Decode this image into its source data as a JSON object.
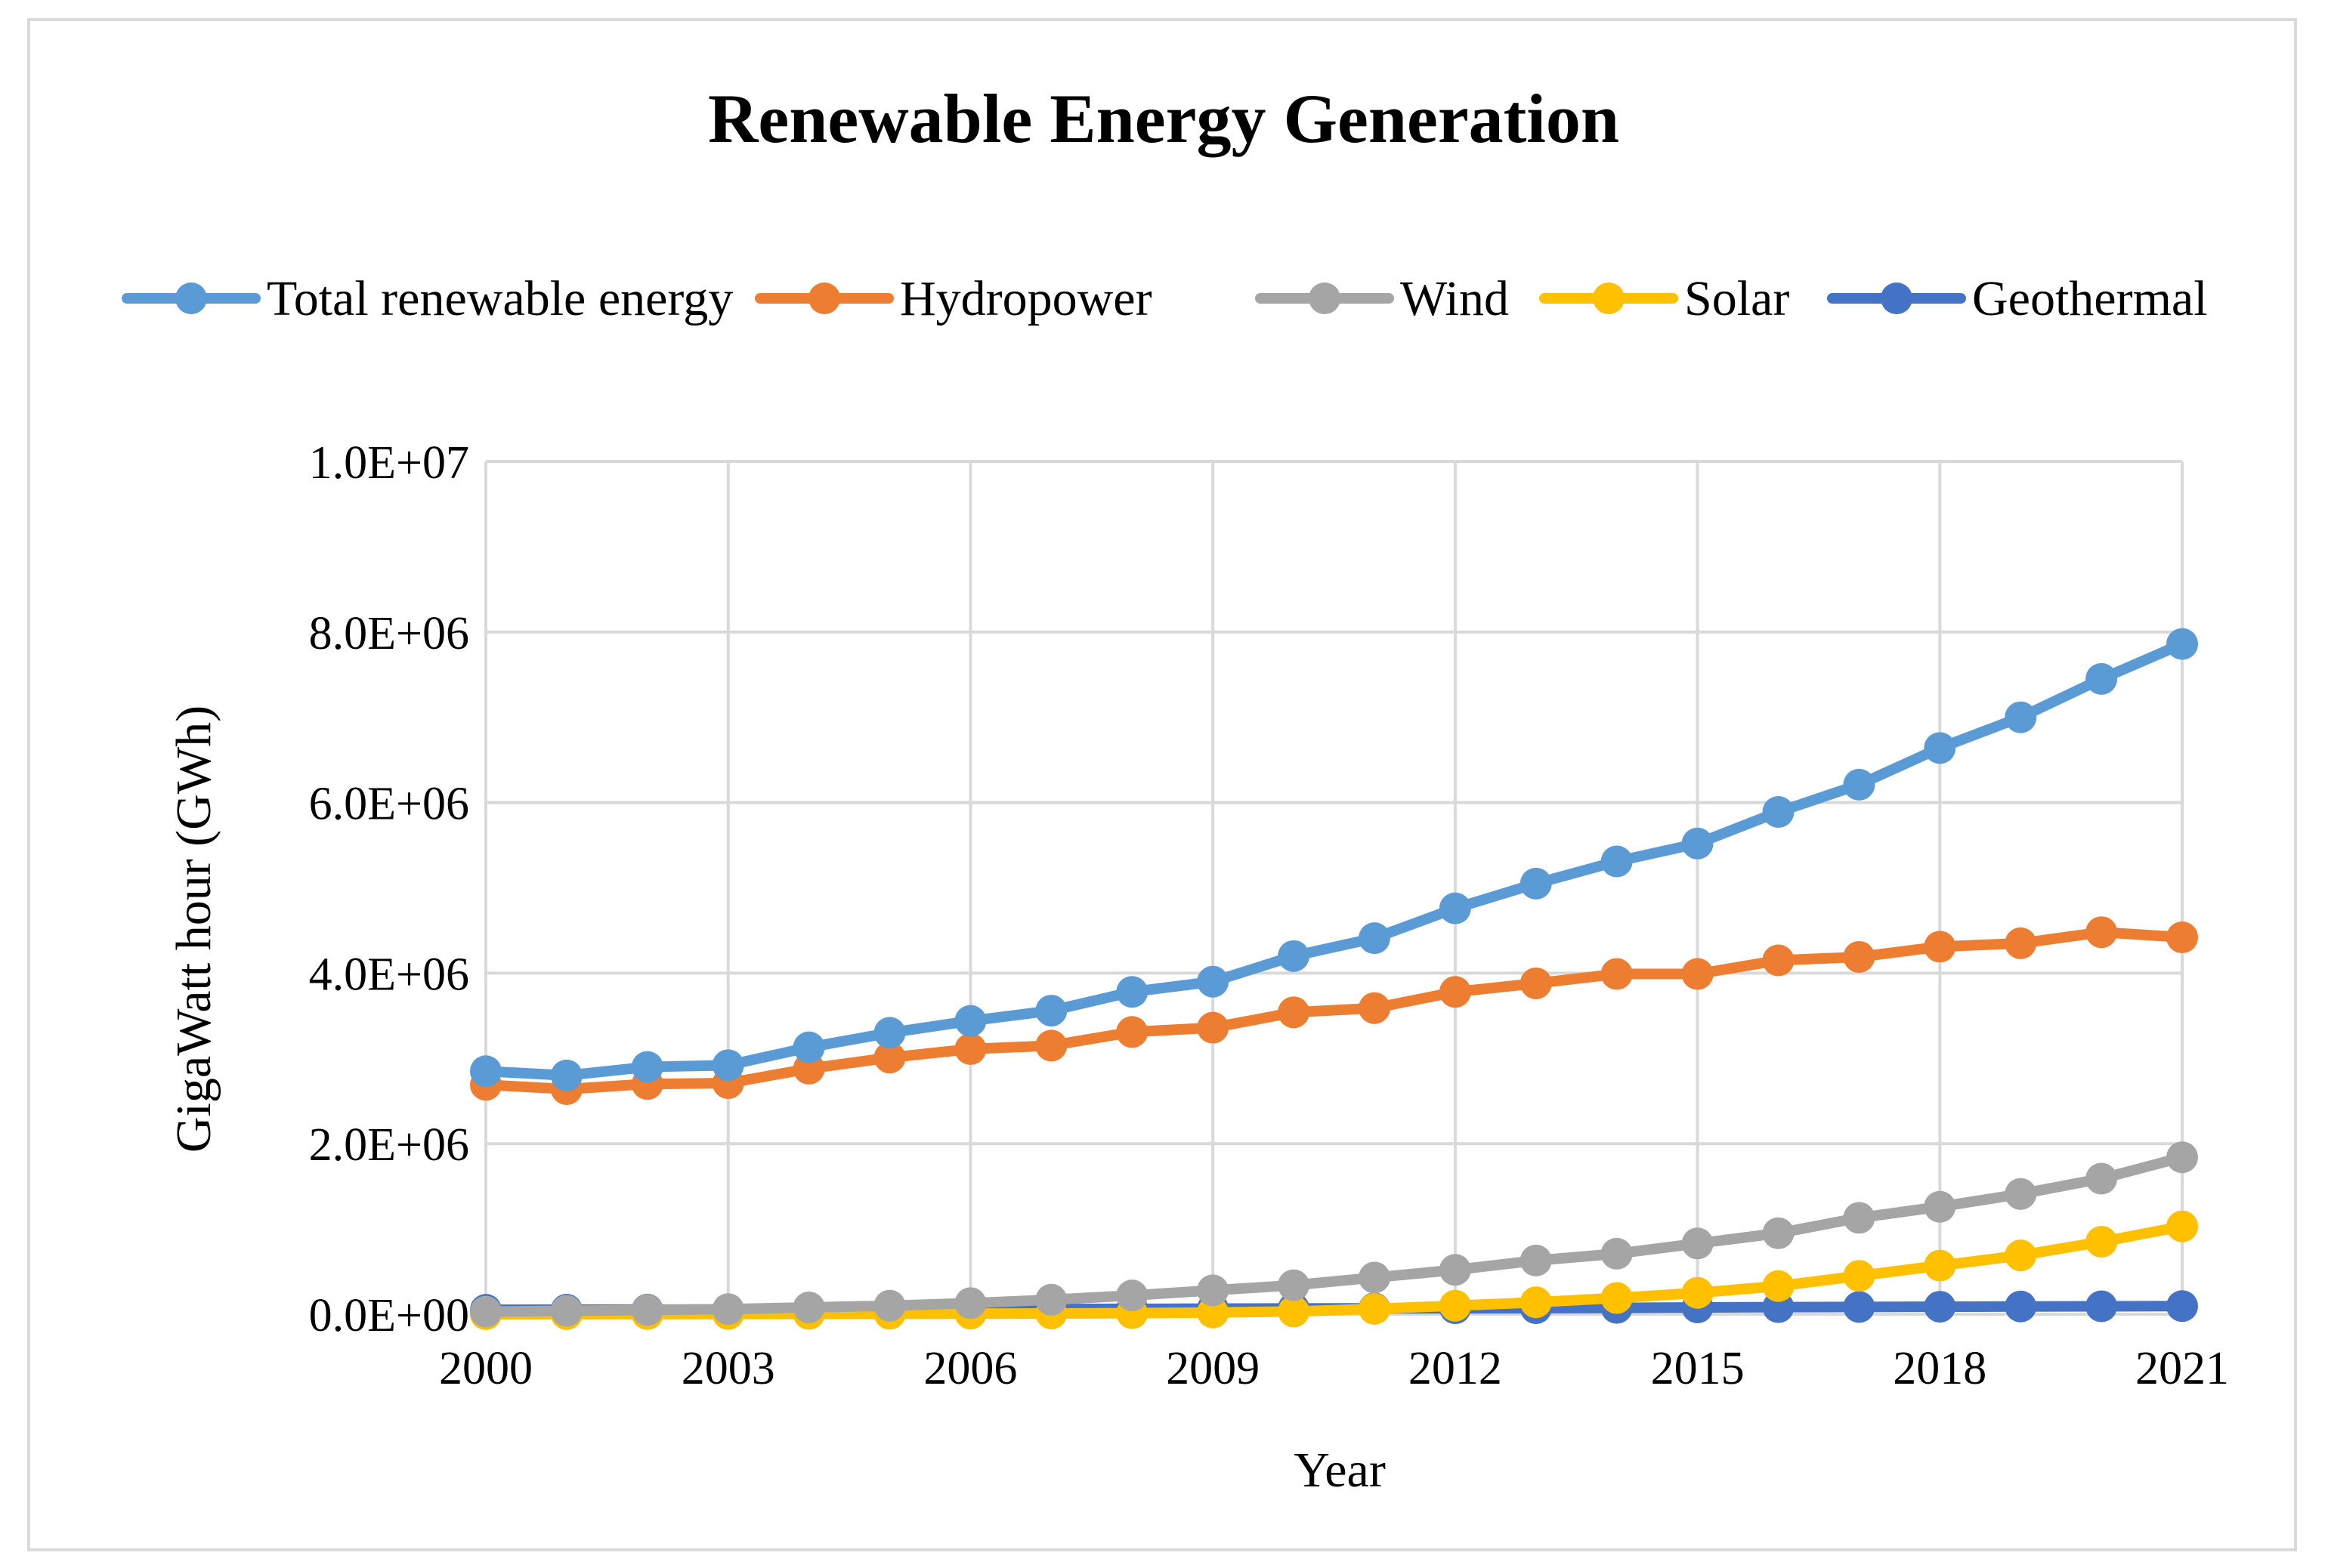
{
  "chart_data": {
    "type": "line",
    "title": "Renewable Energy Generation",
    "xlabel": "Year",
    "ylabel": "GigaWatt hour (GWh)",
    "ylim": [
      0,
      10000000
    ],
    "xlim": [
      2000,
      2021
    ],
    "x_ticks": [
      "2000",
      "2003",
      "2006",
      "2009",
      "2012",
      "2015",
      "2018",
      "2021"
    ],
    "y_ticks": [
      "0.0E+00",
      "2.0E+06",
      "4.0E+06",
      "6.0E+06",
      "8.0E+06",
      "1.0E+07"
    ],
    "grid": true,
    "legend_position": "top",
    "x": [
      2000,
      2001,
      2002,
      2003,
      2004,
      2005,
      2006,
      2007,
      2008,
      2009,
      2010,
      2011,
      2012,
      2013,
      2014,
      2015,
      2016,
      2017,
      2018,
      2019,
      2020,
      2021
    ],
    "series": [
      {
        "name": "Total renewable energy",
        "color": "#5b9bd5",
        "values": [
          2850000,
          2800000,
          2900000,
          2920000,
          3130000,
          3300000,
          3440000,
          3560000,
          3780000,
          3900000,
          4200000,
          4410000,
          4760000,
          5050000,
          5310000,
          5520000,
          5890000,
          6210000,
          6640000,
          7000000,
          7450000,
          7860000
        ]
      },
      {
        "name": "Hydropower",
        "color": "#ed7d31",
        "values": [
          2690000,
          2640000,
          2700000,
          2710000,
          2880000,
          3010000,
          3110000,
          3150000,
          3310000,
          3360000,
          3540000,
          3590000,
          3780000,
          3880000,
          3990000,
          3990000,
          4150000,
          4190000,
          4310000,
          4350000,
          4480000,
          4420000
        ]
      },
      {
        "name": "Wind",
        "color": "#a5a5a5",
        "values": [
          30000,
          40000,
          50000,
          60000,
          80000,
          100000,
          130000,
          170000,
          220000,
          280000,
          340000,
          430000,
          520000,
          630000,
          710000,
          830000,
          950000,
          1130000,
          1260000,
          1410000,
          1590000,
          1840000
        ]
      },
      {
        "name": "Solar",
        "color": "#ffc000",
        "values": [
          1000,
          1500,
          2000,
          3000,
          4000,
          5000,
          7000,
          9000,
          12000,
          20000,
          32000,
          63000,
          100000,
          140000,
          190000,
          250000,
          330000,
          450000,
          570000,
          690000,
          850000,
          1030000
        ]
      },
      {
        "name": "Geothermal",
        "color": "#4472c4",
        "values": [
          52000,
          53000,
          54000,
          55000,
          56000,
          58000,
          59000,
          61000,
          63000,
          65000,
          68000,
          69000,
          70000,
          71000,
          74000,
          80000,
          83000,
          85000,
          88000,
          91000,
          93000,
          95000
        ]
      }
    ]
  }
}
